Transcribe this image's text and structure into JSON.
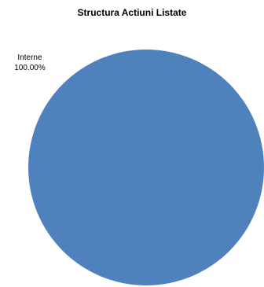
{
  "chart_data": {
    "type": "pie",
    "title": "Structura Actiuni Listate",
    "categories": [
      "Interne"
    ],
    "values": [
      100.0
    ],
    "value_labels": [
      "100.00%"
    ],
    "colors": [
      "#4f81bd"
    ],
    "legend": "none"
  }
}
